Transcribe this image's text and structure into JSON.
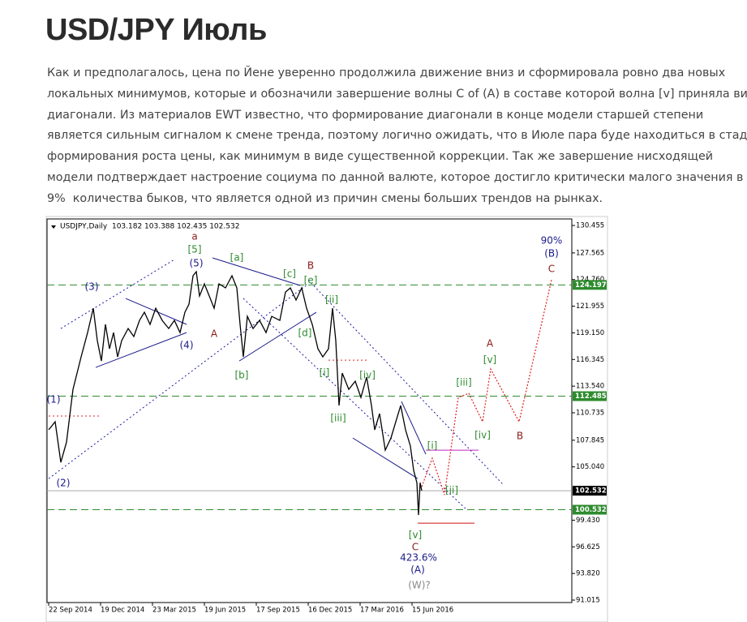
{
  "header": {
    "title": "USD/JPY Июль"
  },
  "paragraph": {
    "lines": [
      "Как и предполагалось, цена по Йене уверенно продолжила движение вниз и сформировала ровно два новых",
      "локальных минимумов, которые и обозначили завершение волны С of (A) в составе которой волна [v] приняла вид",
      "диагонали. Из материалов EWT известно, что формирование диагонали в конце модели старшей степени",
      "является сильным сигналом к смене тренда, поэтому логично ожидать, что в Июле пара буде находиться в стадии",
      "формирования роста цены, как минимум в виде существенной коррекции. Так же завершение нисходящей",
      "модели подтверждает настроение социума по данной валюте, которое достигло критически малого значения в",
      "9%  количества быков, что является одной из причин смены больших трендов на рынках."
    ]
  },
  "chart_data": {
    "type": "line",
    "title": "USDJPY,Daily  103.182 103.388 102.435 102.532",
    "color": "#000000",
    "x": [
      0,
      8,
      15,
      22,
      30,
      40,
      48,
      55,
      60,
      65,
      70,
      75,
      80,
      85,
      90,
      98,
      105,
      112,
      118,
      125,
      132,
      140,
      148,
      155,
      162,
      168,
      173,
      178,
      182,
      186,
      192,
      198,
      204,
      210,
      218,
      226,
      232,
      236,
      240,
      245,
      252,
      260,
      268,
      275,
      285,
      292,
      298,
      305,
      312,
      318,
      325,
      332,
      338,
      345,
      350,
      354,
      358,
      362,
      370,
      378,
      385,
      392,
      398,
      402,
      408,
      415,
      422,
      428,
      434,
      440,
      446,
      450,
      454,
      456,
      458,
      460
    ],
    "values": [
      108.94,
      109.79,
      105.52,
      107.65,
      113.2,
      116.62,
      119.18,
      121.74,
      118.33,
      116.19,
      120.04,
      117.47,
      119.18,
      116.62,
      118.33,
      119.61,
      118.76,
      120.46,
      121.32,
      120.04,
      121.74,
      120.46,
      119.61,
      120.46,
      119.18,
      121.32,
      122.17,
      125.16,
      125.59,
      123.03,
      124.31,
      123.03,
      121.74,
      124.31,
      123.88,
      125.16,
      123.88,
      120.04,
      116.62,
      120.89,
      119.61,
      120.46,
      119.18,
      120.89,
      120.46,
      123.45,
      123.88,
      122.6,
      123.88,
      121.74,
      120.04,
      117.47,
      116.62,
      117.47,
      121.74,
      118.33,
      111.5,
      114.91,
      113.2,
      114.06,
      112.35,
      114.49,
      111.5,
      108.94,
      110.64,
      106.8,
      108.08,
      109.79,
      111.5,
      108.94,
      107.23,
      104.67,
      103.38,
      99.97,
      103.38,
      102.53
    ],
    "projection": {
      "color": "#e02020",
      "x": [
        460,
        473,
        488,
        505,
        518,
        535,
        545,
        580,
        620
      ],
      "values": [
        102.96,
        105.95,
        102.1,
        112.35,
        112.78,
        109.79,
        115.34,
        109.79,
        124.73
      ]
    },
    "xlim": [
      -2,
      645
    ],
    "xticks": [
      {
        "value": 0,
        "label": "22 Sep 2014"
      },
      {
        "value": 64,
        "label": "19 Dec 2014"
      },
      {
        "value": 128,
        "label": "23 Mar 2015"
      },
      {
        "value": 192,
        "label": "19 Jun 2015"
      },
      {
        "value": 256,
        "label": "17 Sep 2015"
      },
      {
        "value": 320,
        "label": "16 Dec 2015"
      },
      {
        "value": 384,
        "label": "17 Mar 2016"
      },
      {
        "value": 448,
        "label": "15 Jun 2016"
      }
    ],
    "ylim": [
      90.76,
      131.14
    ],
    "yticks": [
      130.455,
      127.565,
      {
        "value": 124.76,
        "label": "124.760"
      },
      121.955,
      {
        "value": 119.15,
        "label": "119.150"
      },
      116.345,
      {
        "value": 113.54,
        "label": "113.540"
      },
      110.735,
      107.845,
      {
        "value": 105.04,
        "label": "105.040"
      },
      {
        "value": 99.43,
        "label": "99.430"
      },
      96.625,
      {
        "value": 93.82,
        "label": "93.820"
      },
      91.015
    ],
    "levels": [
      {
        "value": 124.197,
        "color": "#2e8b2e",
        "style": "dashed"
      },
      {
        "value": 112.485,
        "color": "#2e8b2e",
        "style": "dashed"
      },
      {
        "value": 102.532,
        "color": "#000000",
        "style": "solid"
      },
      {
        "value": 100.532,
        "color": "#2e8b2e",
        "style": "dashed"
      }
    ],
    "trendlines": [
      {
        "x": [
          15,
          155
        ],
        "values": [
          119.61,
          126.87
        ],
        "color": "#1a1aa0",
        "style": "dotted"
      },
      {
        "x": [
          0,
          320
        ],
        "values": [
          103.81,
          124.31
        ],
        "color": "#1a1aa0",
        "style": "dotted"
      },
      {
        "x": [
          95,
          170
        ],
        "values": [
          122.77,
          120.04
        ],
        "color": "#1a1a8c",
        "style": "solid"
      },
      {
        "x": [
          58,
          170
        ],
        "values": [
          115.51,
          119.18
        ],
        "color": "#1a1a8c",
        "style": "solid"
      },
      {
        "x": [
          202,
          310
        ],
        "values": [
          127.04,
          124.14
        ],
        "color": "#1a1a8c",
        "style": "solid"
      },
      {
        "x": [
          235,
          330
        ],
        "values": [
          116.19,
          121.32
        ],
        "color": "#1a1a8c",
        "style": "solid"
      },
      {
        "x": [
          240,
          515
        ],
        "values": [
          122.77,
          100.57
        ],
        "color": "#1a1aa0",
        "style": "dotted"
      },
      {
        "x": [
          320,
          560
        ],
        "values": [
          124.73,
          103.21
        ],
        "color": "#1a1aa0",
        "style": "dotted"
      },
      {
        "x": [
          375,
          455
        ],
        "values": [
          108.08,
          103.81
        ],
        "color": "#1a1a8c",
        "style": "solid"
      },
      {
        "x": [
          435,
          465
        ],
        "values": [
          111.92,
          106.37
        ],
        "color": "#1a1a8c",
        "style": "solid"
      },
      {
        "x": [
          0,
          65
        ],
        "values": [
          110.39,
          110.39
        ],
        "color": "#e02020",
        "style": "dotted"
      },
      {
        "x": [
          345,
          395
        ],
        "values": [
          116.28,
          116.28
        ],
        "color": "#e02020",
        "style": "dotted"
      },
      {
        "x": [
          455,
          525
        ],
        "values": [
          99.12,
          99.12
        ],
        "color": "#d01010",
        "style": "solid"
      },
      {
        "x": [
          465,
          530
        ],
        "values": [
          106.8,
          106.8
        ],
        "color": "#c020c0",
        "style": "solid"
      }
    ],
    "annotations": [
      {
        "text": "a",
        "x": 180,
        "y": 129.26,
        "color": "#8b1a1a"
      },
      {
        "text": "[5]",
        "x": 180,
        "y": 127.89,
        "color": "#2e8b2e"
      },
      {
        "text": "(5)",
        "x": 182,
        "y": 126.44,
        "color": "#1a1a8c"
      },
      {
        "text": "[a]",
        "x": 232,
        "y": 127.04,
        "color": "#2e8b2e"
      },
      {
        "text": "[c]",
        "x": 297,
        "y": 125.33,
        "color": "#2e8b2e"
      },
      {
        "text": "B",
        "x": 323,
        "y": 126.19,
        "color": "#8b1a1a"
      },
      {
        "text": "[e]",
        "x": 323,
        "y": 124.65,
        "color": "#2e8b2e"
      },
      {
        "text": "(3)",
        "x": 53,
        "y": 123.97,
        "color": "#1a1a8c"
      },
      {
        "text": "A",
        "x": 204,
        "y": 119.01,
        "color": "#8b1a1a"
      },
      {
        "text": "(4)",
        "x": 170,
        "y": 117.82,
        "color": "#1a1a8c"
      },
      {
        "text": "[ii]",
        "x": 349,
        "y": 122.6,
        "color": "#2e8b2e"
      },
      {
        "text": "[d]",
        "x": 316,
        "y": 119.1,
        "color": "#2e8b2e"
      },
      {
        "text": "[b]",
        "x": 238,
        "y": 114.66,
        "color": "#2e8b2e"
      },
      {
        "text": "[i]",
        "x": 340,
        "y": 114.91,
        "color": "#2e8b2e"
      },
      {
        "text": "[iv]",
        "x": 393,
        "y": 114.66,
        "color": "#2e8b2e"
      },
      {
        "text": "[iii]",
        "x": 357,
        "y": 110.13,
        "color": "#2e8b2e"
      },
      {
        "text": "(1)",
        "x": 6,
        "y": 112.1,
        "color": "#1a1a8c"
      },
      {
        "text": "(2)",
        "x": 18,
        "y": 103.3,
        "color": "#1a1a8c"
      },
      {
        "text": "[i]",
        "x": 473,
        "y": 107.23,
        "color": "#2e8b2e"
      },
      {
        "text": "[ii]",
        "x": 497,
        "y": 102.53,
        "color": "#2e8b2e"
      },
      {
        "text": "[v]",
        "x": 452,
        "y": 97.83,
        "color": "#2e8b2e"
      },
      {
        "text": "C",
        "x": 452,
        "y": 96.55,
        "color": "#8b1a1a"
      },
      {
        "text": "423.6%",
        "x": 456,
        "y": 95.44,
        "color": "#1a1a8c"
      },
      {
        "text": "(A)",
        "x": 455,
        "y": 94.16,
        "color": "#1a1a8c"
      },
      {
        "text": "(W)?",
        "x": 457,
        "y": 92.54,
        "color": "#888888"
      },
      {
        "text": "90%",
        "x": 620,
        "y": 128.83,
        "color": "#1a1a8c"
      },
      {
        "text": "(B)",
        "x": 620,
        "y": 127.47,
        "color": "#1a1a8c"
      },
      {
        "text": "C",
        "x": 620,
        "y": 125.84,
        "color": "#8b1a1a"
      },
      {
        "text": "A",
        "x": 544,
        "y": 117.99,
        "color": "#8b1a1a"
      },
      {
        "text": "[v]",
        "x": 544,
        "y": 116.28,
        "color": "#2e8b2e"
      },
      {
        "text": "[iii]",
        "x": 512,
        "y": 113.89,
        "color": "#2e8b2e"
      },
      {
        "text": "[iv]",
        "x": 535,
        "y": 108.34,
        "color": "#2e8b2e"
      },
      {
        "text": "B",
        "x": 581,
        "y": 108.25,
        "color": "#8b1a1a"
      }
    ]
  }
}
